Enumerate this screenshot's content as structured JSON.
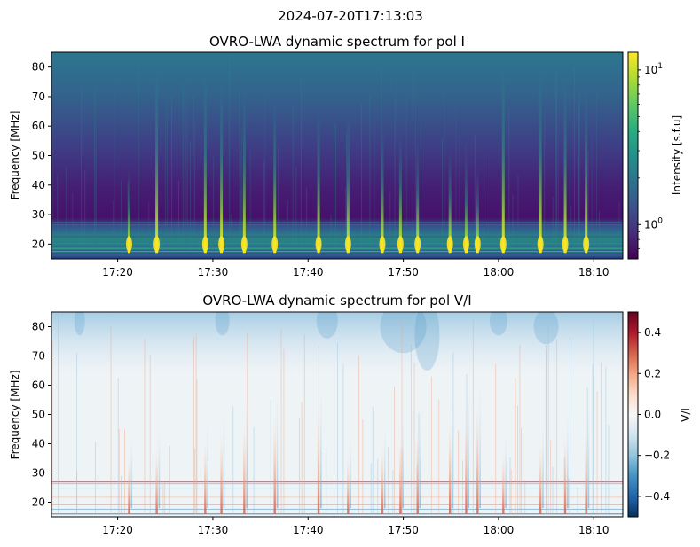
{
  "suptitle": "2024-07-20T17:13:03",
  "chart_data": [
    {
      "type": "heatmap",
      "title": "OVRO-LWA dynamic spectrum for pol I",
      "xlabel": "",
      "ylabel": "Frequency [MHz]",
      "x_ticks": [
        "17:20",
        "17:30",
        "17:40",
        "17:50",
        "18:00",
        "18:10"
      ],
      "x_tick_minutes": [
        0,
        10,
        20,
        30,
        40,
        50
      ],
      "x_range_minutes": [
        -6.95,
        53.05
      ],
      "y_ticks": [
        20,
        30,
        40,
        50,
        60,
        70,
        80
      ],
      "ylim": [
        15,
        85
      ],
      "colorbar": {
        "label": "Intensity [s.f.u]",
        "scale": "log",
        "range": [
          0.6,
          13
        ],
        "ticks": [
          {
            "value": 10,
            "label": "10",
            "sup": "1"
          },
          {
            "value": 1,
            "label": "10",
            "sup": "0"
          }
        ],
        "colormap": "viridis",
        "colors": [
          "#440154",
          "#472d7b",
          "#3b528b",
          "#2c728e",
          "#21918c",
          "#28ae80",
          "#5ec962",
          "#addc30",
          "#fde725"
        ]
      },
      "bursts_minutes": [
        1.2,
        4.1,
        9.2,
        10.9,
        13.3,
        16.5,
        21.1,
        24.2,
        27.8,
        29.7,
        31.5,
        34.9,
        36.6,
        37.8,
        40.5,
        44.4,
        47.0,
        49.2
      ]
    },
    {
      "type": "heatmap",
      "title": "OVRO-LWA dynamic spectrum for pol V/I",
      "xlabel": "",
      "ylabel": "Frequency [MHz]",
      "x_ticks": [
        "17:20",
        "17:30",
        "17:40",
        "17:50",
        "18:00",
        "18:10"
      ],
      "x_tick_minutes": [
        0,
        10,
        20,
        30,
        40,
        50
      ],
      "x_range_minutes": [
        -6.95,
        53.05
      ],
      "y_ticks": [
        20,
        30,
        40,
        50,
        60,
        70,
        80
      ],
      "ylim": [
        15,
        85
      ],
      "colorbar": {
        "label": "V/I",
        "scale": "linear",
        "range": [
          -0.5,
          0.5
        ],
        "ticks": [
          {
            "value": 0.4,
            "label": "0.4"
          },
          {
            "value": 0.2,
            "label": "0.2"
          },
          {
            "value": 0.0,
            "label": "0.0"
          },
          {
            "value": -0.2,
            "label": "−0.2"
          },
          {
            "value": -0.4,
            "label": "−0.4"
          }
        ],
        "colormap": "RdBu_r",
        "colors": [
          "#053061",
          "#2166ac",
          "#4393c3",
          "#92c5de",
          "#d1e5f0",
          "#f7f7f7",
          "#fddbc7",
          "#f4a582",
          "#d6604d",
          "#b2182b",
          "#67001f"
        ]
      },
      "bursts_minutes": [
        1.2,
        4.1,
        9.2,
        10.9,
        13.3,
        16.5,
        21.1,
        24.2,
        27.8,
        29.7,
        31.5,
        34.9,
        36.6,
        37.8,
        40.5,
        44.4,
        47.0,
        49.2
      ]
    }
  ]
}
